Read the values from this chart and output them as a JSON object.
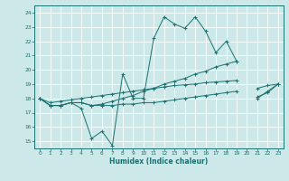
{
  "title": "",
  "xlabel": "Humidex (Indice chaleur)",
  "ylabel": "",
  "background_color": "#cde8e8",
  "line_color": "#1a7070",
  "grid_color": "#b8d8d8",
  "xlim": [
    -0.5,
    23.5
  ],
  "ylim": [
    14.5,
    24.5
  ],
  "yticks": [
    15,
    16,
    17,
    18,
    19,
    20,
    21,
    22,
    23,
    24
  ],
  "xticks": [
    0,
    1,
    2,
    3,
    4,
    5,
    6,
    7,
    8,
    9,
    10,
    11,
    12,
    13,
    14,
    15,
    16,
    17,
    18,
    19,
    20,
    21,
    22,
    23
  ],
  "series": [
    [
      18.0,
      17.5,
      17.5,
      17.7,
      17.3,
      15.2,
      15.7,
      14.7,
      19.7,
      18.0,
      18.0,
      22.2,
      23.7,
      23.2,
      22.9,
      23.7,
      22.7,
      21.2,
      22.0,
      20.6,
      null,
      18.0,
      18.5,
      19.0
    ],
    [
      18.0,
      17.5,
      17.5,
      17.7,
      17.7,
      17.5,
      17.6,
      17.8,
      18.0,
      18.2,
      18.5,
      18.7,
      19.0,
      19.2,
      19.4,
      19.7,
      19.9,
      20.2,
      20.4,
      20.6,
      null,
      null,
      null,
      null
    ],
    [
      18.0,
      17.7,
      17.8,
      17.9,
      18.0,
      18.1,
      18.2,
      18.3,
      18.4,
      18.5,
      18.6,
      18.7,
      18.8,
      18.9,
      18.95,
      19.0,
      19.1,
      19.15,
      19.2,
      19.25,
      null,
      18.1,
      18.4,
      19.0
    ],
    [
      18.0,
      17.5,
      17.5,
      17.7,
      17.7,
      17.5,
      17.5,
      17.5,
      17.6,
      17.6,
      17.7,
      17.7,
      17.8,
      17.9,
      18.0,
      18.1,
      18.2,
      18.3,
      18.4,
      18.5,
      null,
      18.7,
      18.9,
      19.0
    ]
  ]
}
